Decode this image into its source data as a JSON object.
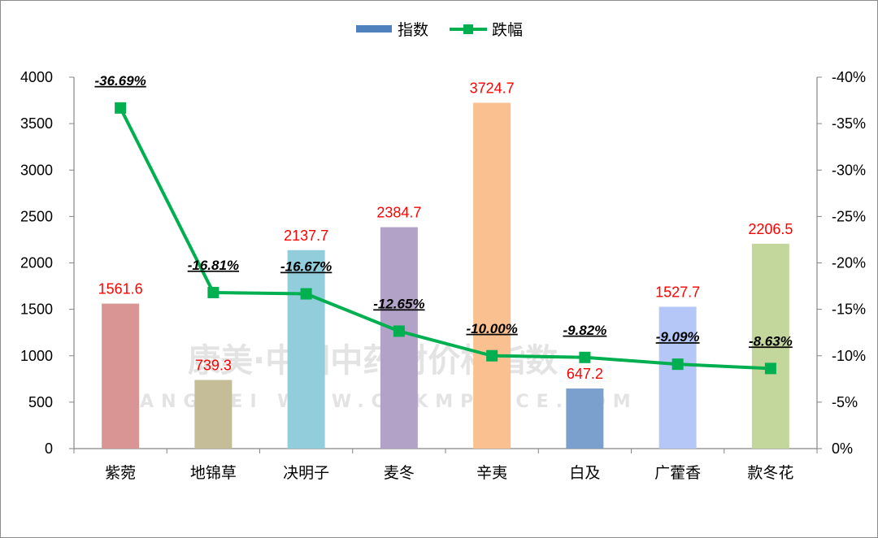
{
  "chart_data": {
    "type": "bar",
    "categories": [
      "紫菀",
      "地锦草",
      "决明子",
      "麦冬",
      "辛夷",
      "白及",
      "广藿香",
      "款冬花"
    ],
    "series": [
      {
        "name": "指数",
        "type": "bar",
        "axis": "left",
        "values": [
          1561.6,
          739.3,
          2137.7,
          2384.7,
          3724.7,
          647.2,
          1527.7,
          2206.5
        ],
        "labels": [
          "1561.6",
          "739.3",
          "2137.7",
          "2384.7",
          "3724.7",
          "647.2",
          "1527.7",
          "2206.5"
        ],
        "colors": [
          "#d99594",
          "#c4bd97",
          "#92cddc",
          "#b2a2c7",
          "#fac090",
          "#7ba0cd",
          "#b4c7f7",
          "#c3d69b"
        ],
        "legend_color": "#4f81bd"
      },
      {
        "name": "跌幅",
        "type": "line",
        "axis": "right",
        "values": [
          -36.69,
          -16.81,
          -16.67,
          -12.65,
          -10.0,
          -9.82,
          -9.09,
          -8.63
        ],
        "labels": [
          "-36.69%",
          "-16.81%",
          "-16.67%",
          "-12.65%",
          "-10.00%",
          "-9.82%",
          "-9.09%",
          "-8.63%"
        ],
        "color": "#00b050"
      }
    ],
    "y_left": {
      "min": 0,
      "max": 4000,
      "ticks": [
        "0",
        "500",
        "1000",
        "1500",
        "2000",
        "2500",
        "3000",
        "3500",
        "4000"
      ]
    },
    "y_right": {
      "min": 0,
      "max": -40,
      "reversed": true,
      "ticks": [
        "0%",
        "-5%",
        "-10%",
        "-15%",
        "-20%",
        "-25%",
        "-30%",
        "-35%",
        "-40%"
      ]
    },
    "legend": {
      "position": "top",
      "items": [
        "指数",
        "跌幅"
      ]
    },
    "grid": false
  },
  "watermark": {
    "line1": "康美·中国中药材价格指数",
    "line2": "KANGMEI WWW.CNKMPRICE.COM"
  }
}
